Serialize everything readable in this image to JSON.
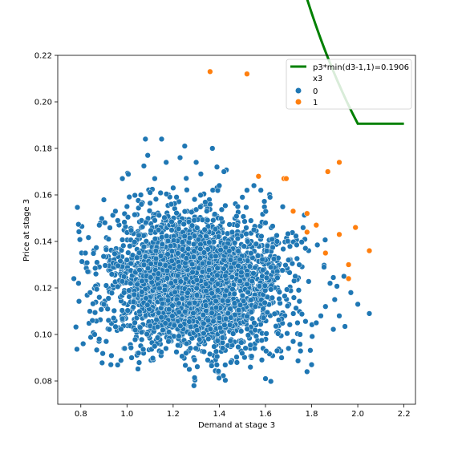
{
  "chart_data": {
    "type": "scatter",
    "title": "",
    "xlabel": "Demand at stage 3",
    "ylabel": "Price at stage 3",
    "xlim": [
      0.7,
      2.25
    ],
    "ylim": [
      0.07,
      0.22
    ],
    "xticks": [
      "0.8",
      "1.0",
      "1.2",
      "1.4",
      "1.6",
      "1.8",
      "2.0",
      "2.2"
    ],
    "yticks": [
      "0.08",
      "0.10",
      "0.12",
      "0.14",
      "0.16",
      "0.18",
      "0.20",
      "0.22"
    ],
    "grid": false,
    "legend_position": "top-right",
    "legend": {
      "line_label": "p3*min(d3-1,1)=0.1906",
      "hue_title": "x3",
      "class0_label": "0",
      "class1_label": "1"
    },
    "colors": {
      "class0": "#1f77b4",
      "class1": "#ff7f0e",
      "curve": "#008000"
    },
    "curve": {
      "label": "p3*min(d3-1,1)=0.1906",
      "constant": 0.1906,
      "x_range": [
        1.2,
        2.2
      ]
    },
    "cluster_class0": {
      "description_n_points": 3000,
      "x_mean": 1.3,
      "x_sd": 0.19,
      "y_mean": 0.122,
      "y_sd": 0.0145
    },
    "series": [
      {
        "name": "0",
        "points": [
          [
            0.77,
            0.124
          ],
          [
            0.79,
            0.122
          ],
          [
            0.81,
            0.096
          ],
          [
            0.83,
            0.127
          ],
          [
            0.82,
            0.135
          ],
          [
            0.84,
            0.118
          ],
          [
            0.85,
            0.106
          ],
          [
            0.86,
            0.1
          ],
          [
            0.88,
            0.147
          ],
          [
            0.87,
            0.131
          ],
          [
            0.9,
            0.113
          ],
          [
            0.91,
            0.097
          ],
          [
            0.92,
            0.141
          ],
          [
            0.93,
            0.087
          ],
          [
            0.95,
            0.153
          ],
          [
            0.96,
            0.149
          ],
          [
            0.98,
            0.167
          ],
          [
            0.99,
            0.094
          ],
          [
            1.0,
            0.155
          ],
          [
            1.02,
            0.09
          ],
          [
            1.05,
            0.092
          ],
          [
            1.06,
            0.16
          ],
          [
            1.08,
            0.184
          ],
          [
            1.09,
            0.177
          ],
          [
            1.1,
            0.161
          ],
          [
            1.12,
            0.167
          ],
          [
            1.15,
            0.184
          ],
          [
            1.17,
            0.174
          ],
          [
            1.18,
            0.097
          ],
          [
            1.2,
            0.163
          ],
          [
            1.23,
            0.176
          ],
          [
            1.25,
            0.181
          ],
          [
            1.27,
            0.085
          ],
          [
            1.29,
            0.078
          ],
          [
            1.3,
            0.174
          ],
          [
            1.32,
            0.169
          ],
          [
            1.35,
            0.089
          ],
          [
            1.37,
            0.18
          ],
          [
            1.39,
            0.172
          ],
          [
            1.4,
            0.164
          ],
          [
            1.42,
            0.17
          ],
          [
            1.45,
            0.088
          ],
          [
            1.48,
            0.155
          ],
          [
            1.5,
            0.159
          ],
          [
            1.52,
            0.162
          ],
          [
            1.55,
            0.145
          ],
          [
            1.58,
            0.162
          ],
          [
            1.6,
            0.081
          ],
          [
            1.62,
            0.159
          ],
          [
            1.65,
            0.093
          ],
          [
            1.67,
            0.09
          ],
          [
            1.7,
            0.094
          ],
          [
            1.72,
            0.097
          ],
          [
            1.75,
            0.1
          ],
          [
            1.78,
            0.084
          ],
          [
            1.8,
            0.087
          ],
          [
            1.82,
            0.105
          ],
          [
            1.84,
            0.108
          ],
          [
            1.86,
            0.112
          ],
          [
            1.88,
            0.122
          ],
          [
            1.9,
            0.115
          ],
          [
            1.92,
            0.108
          ],
          [
            1.94,
            0.125
          ],
          [
            1.97,
            0.118
          ],
          [
            2.0,
            0.113
          ],
          [
            2.05,
            0.109
          ],
          [
            1.55,
            0.164
          ],
          [
            1.6,
            0.148
          ],
          [
            1.65,
            0.14
          ],
          [
            1.7,
            0.132
          ]
        ]
      },
      {
        "name": "1",
        "points": [
          [
            1.36,
            0.213
          ],
          [
            1.52,
            0.212
          ],
          [
            1.57,
            0.168
          ],
          [
            1.68,
            0.167
          ],
          [
            1.69,
            0.167
          ],
          [
            1.72,
            0.153
          ],
          [
            1.78,
            0.152
          ],
          [
            1.78,
            0.144
          ],
          [
            1.82,
            0.147
          ],
          [
            1.87,
            0.17
          ],
          [
            1.92,
            0.174
          ],
          [
            1.92,
            0.143
          ],
          [
            1.99,
            0.146
          ],
          [
            2.05,
            0.136
          ],
          [
            1.96,
            0.13
          ],
          [
            1.96,
            0.124
          ],
          [
            1.86,
            0.135
          ]
        ]
      }
    ]
  }
}
